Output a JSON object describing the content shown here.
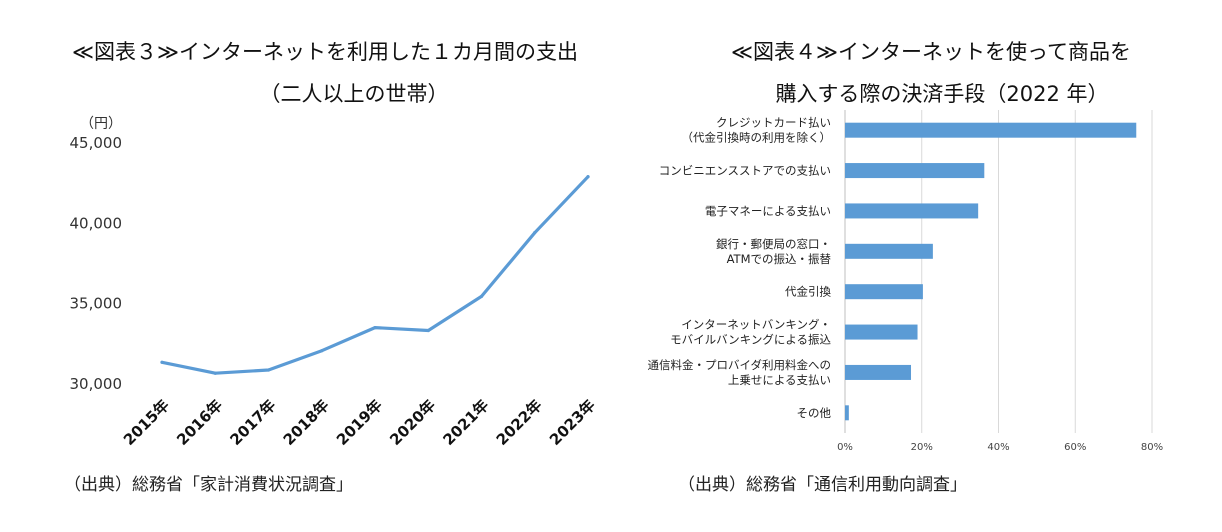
{
  "charts": [
    {
      "title_line1": "≪図表３≫インターネットを利用した１カ月間の支出",
      "title_line2": "（二人以上の世帯）",
      "source": "（出典）総務省「家計消費状況調査」"
    },
    {
      "title_line1": "≪図表４≫インターネットを使って商品を",
      "title_line2": "購入する際の決済手段（2022 年）",
      "source": "（出典）総務省「通信利用動向調査」"
    }
  ],
  "chart_data": [
    {
      "type": "line",
      "title": "≪図表３≫インターネットを利用した１カ月間の支出（二人以上の世帯）",
      "unit_label": "（円）",
      "x": [
        "2015年",
        "2016年",
        "2017年",
        "2018年",
        "2019年",
        "2020年",
        "2021年",
        "2022年",
        "2023年"
      ],
      "series": [
        {
          "values": [
            31350,
            30670,
            30870,
            32070,
            33510,
            33330,
            35450,
            39420,
            42900
          ]
        }
      ],
      "ylim": [
        30000,
        45000
      ],
      "yticks": [
        30000,
        35000,
        40000,
        45000
      ],
      "ytick_labels": [
        "30,000",
        "35,000",
        "40,000",
        "45,000"
      ],
      "color": "#5b9bd5",
      "grid": false
    },
    {
      "type": "bar",
      "orientation": "horizontal",
      "title": "≪図表４≫インターネットを使って商品を購入する際の決済手段（2022 年）",
      "categories": [
        [
          "クレジットカード払い",
          "（代金引換時の利用を除く）"
        ],
        [
          "コンビニエンスストアでの支払い"
        ],
        [
          "電子マネーによる支払い"
        ],
        [
          "銀行・郵便局の窓口・",
          "ATMでの振込・振替"
        ],
        [
          "代金引換"
        ],
        [
          "インターネットバンキング・",
          "モバイルバンキングによる振込"
        ],
        [
          "通信料金・プロバイダ利用料金への",
          "上乗せによる支払い"
        ],
        [
          "その他"
        ]
      ],
      "values": [
        75.9,
        36.3,
        34.7,
        22.9,
        20.3,
        18.9,
        17.2,
        1.0
      ],
      "xlim": [
        0,
        80
      ],
      "xticks": [
        0,
        20,
        40,
        60,
        80
      ],
      "xtick_labels": [
        "0%",
        "20%",
        "40%",
        "60%",
        "80%"
      ],
      "color": "#5b9bd5",
      "grid": true
    }
  ]
}
